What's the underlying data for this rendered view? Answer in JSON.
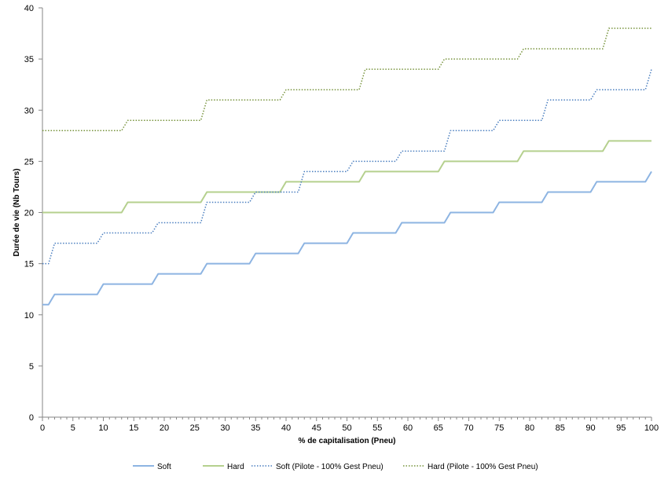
{
  "chart_data": {
    "type": "line",
    "title": "",
    "xlabel": "% de capitalisation  (Pneu)",
    "ylabel": "Durée de vie (Nb Tours)",
    "xlim": [
      0,
      100
    ],
    "ylim": [
      0,
      40
    ],
    "xticks": [
      0,
      5,
      10,
      15,
      20,
      25,
      30,
      35,
      40,
      45,
      50,
      55,
      60,
      65,
      70,
      75,
      80,
      85,
      90,
      95,
      100
    ],
    "yticks": [
      0,
      5,
      10,
      15,
      20,
      25,
      30,
      35,
      40
    ],
    "grid": false,
    "legend_position": "bottom",
    "series": [
      {
        "name": "Soft",
        "color": "#8db4e2",
        "style": "solid",
        "steps": [
          [
            0,
            11
          ],
          [
            2,
            12
          ],
          [
            10,
            13
          ],
          [
            19,
            14
          ],
          [
            27,
            15
          ],
          [
            35,
            16
          ],
          [
            43,
            17
          ],
          [
            51,
            18
          ],
          [
            59,
            19
          ],
          [
            67,
            20
          ],
          [
            75,
            21
          ],
          [
            83,
            22
          ],
          [
            91,
            23
          ],
          [
            100,
            24
          ]
        ]
      },
      {
        "name": "Hard",
        "color": "#b5d08e",
        "style": "solid",
        "steps": [
          [
            0,
            20
          ],
          [
            14,
            21
          ],
          [
            27,
            22
          ],
          [
            40,
            23
          ],
          [
            53,
            24
          ],
          [
            66,
            25
          ],
          [
            79,
            26
          ],
          [
            93,
            27
          ]
        ]
      },
      {
        "name": "Soft (Pilote - 100% Gest Pneu)",
        "color": "#4a7ebf",
        "style": "dotted",
        "steps": [
          [
            0,
            15
          ],
          [
            2,
            17
          ],
          [
            10,
            18
          ],
          [
            19,
            19
          ],
          [
            27,
            21
          ],
          [
            35,
            22
          ],
          [
            43,
            24
          ],
          [
            51,
            25
          ],
          [
            59,
            26
          ],
          [
            67,
            28
          ],
          [
            75,
            29
          ],
          [
            83,
            31
          ],
          [
            91,
            32
          ],
          [
            100,
            34
          ]
        ]
      },
      {
        "name": "Hard (Pilote - 100% Gest Pneu)",
        "color": "#77933c",
        "style": "dotted",
        "steps": [
          [
            0,
            28
          ],
          [
            14,
            29
          ],
          [
            27,
            31
          ],
          [
            40,
            32
          ],
          [
            53,
            34
          ],
          [
            66,
            35
          ],
          [
            79,
            36
          ],
          [
            93,
            38
          ]
        ]
      }
    ]
  }
}
